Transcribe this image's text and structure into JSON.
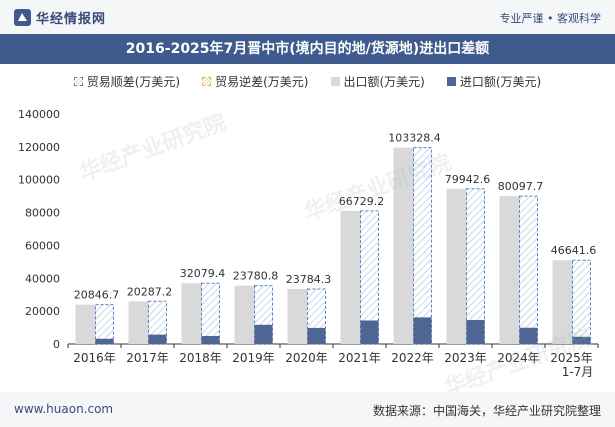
{
  "header": {
    "brand_name": "华经情报网",
    "tagline": "专业严谨 • 客观科学"
  },
  "title": "2016-2025年7月晋中市(境内目的地/货源地)进出口差额",
  "legend": {
    "surplus": "贸易顺差(万美元)",
    "deficit": "贸易逆差(万美元)",
    "export": "出口额(万美元)",
    "import": "进口额(万美元)"
  },
  "watermark": "华经产业研究院",
  "footer": {
    "site": "www.huaon.com",
    "source": "数据来源：中国海关，华经产业研究院整理"
  },
  "colors": {
    "export": "#d9d9d9",
    "import": "#4f6593",
    "surplus_stroke": "#5b86c4",
    "surplus_hatch": "#c8d7ea",
    "title_bg": "#3f5a8c"
  },
  "chart_data": {
    "type": "bar",
    "categories": [
      "2016年",
      "2017年",
      "2018年",
      "2019年",
      "2020年",
      "2021年",
      "2022年",
      "2023年",
      "2024年",
      "2025年\n1-7月"
    ],
    "series": [
      {
        "name": "出口额(万美元)",
        "values": [
          24000,
          26000,
          37000,
          35500,
          33500,
          81000,
          119500,
          94500,
          90000,
          51000
        ]
      },
      {
        "name": "进口额(万美元)",
        "values": [
          3200,
          5700,
          4900,
          11700,
          9800,
          14300,
          16200,
          14600,
          9900,
          4400
        ]
      },
      {
        "name": "贸易顺差(万美元)",
        "values": [
          20846.7,
          20287.2,
          32079.4,
          23780.8,
          23784.3,
          66729.2,
          103328.4,
          79942.6,
          80097.7,
          46641.6
        ]
      }
    ],
    "labels": [
      "20846.7",
      "20287.2",
      "32079.4",
      "23780.8",
      "23784.3",
      "66729.2",
      "103328.4",
      "79942.6",
      "80097.7",
      "46641.6"
    ],
    "yticks": [
      0,
      20000,
      40000,
      60000,
      80000,
      100000,
      120000,
      140000
    ],
    "ylim": [
      0,
      140000
    ],
    "grid": false,
    "legend_position": "top"
  }
}
